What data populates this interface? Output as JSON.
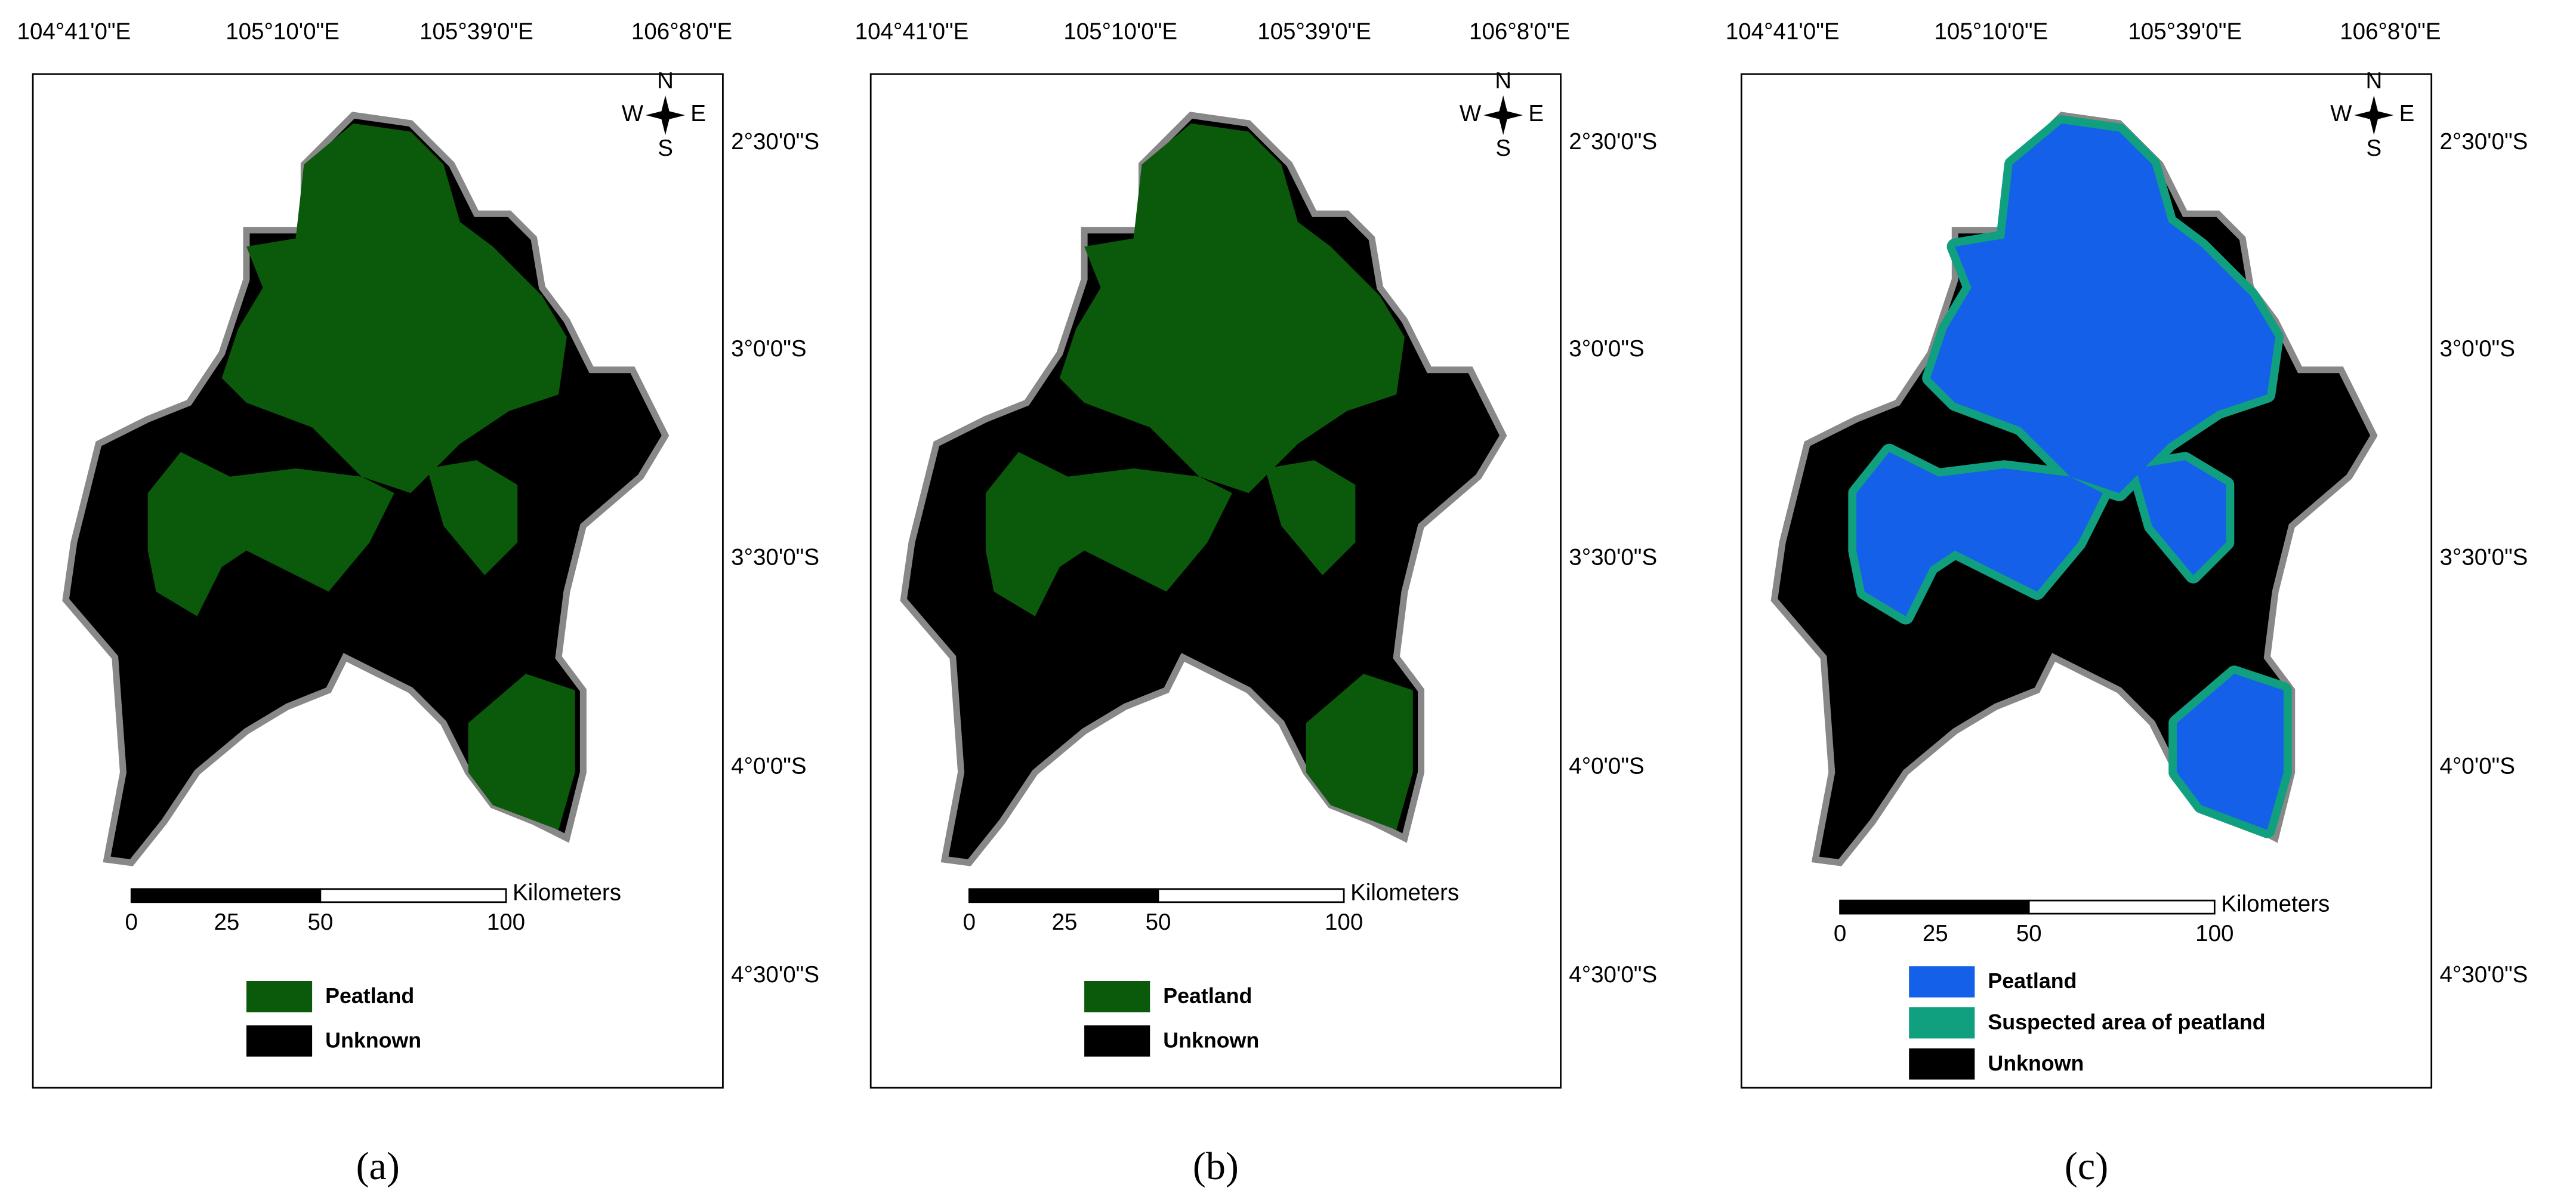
{
  "panels": [
    {
      "caption": "(a)",
      "top_labels": [
        "104°41'0\"E",
        "105°10'0\"E",
        "105°39'0\"E",
        "106°8'0\"E"
      ],
      "right_labels": [
        "2°30'0\"S",
        "3°0'0\"S",
        "3°30'0\"S",
        "4°0'0\"S",
        "4°30'0\"S"
      ],
      "compass": {
        "n": "N",
        "s": "S",
        "e": "E",
        "w": "W"
      },
      "scale": {
        "unit": "Kilometers",
        "labels": [
          "0",
          "25",
          "50",
          "100"
        ]
      },
      "legend": [
        {
          "label": "Peatland",
          "color": "#0b5a0b"
        },
        {
          "label": "Unknown",
          "color": "#000000"
        }
      ]
    },
    {
      "caption": "(b)",
      "top_labels": [
        "104°41'0\"E",
        "105°10'0\"E",
        "105°39'0\"E",
        "106°8'0\"E"
      ],
      "right_labels": [
        "2°30'0\"S",
        "3°0'0\"S",
        "3°30'0\"S",
        "4°0'0\"S",
        "4°30'0\"S"
      ],
      "compass": {
        "n": "N",
        "s": "S",
        "e": "E",
        "w": "W"
      },
      "scale": {
        "unit": "Kilometers",
        "labels": [
          "0",
          "25",
          "50",
          "100"
        ]
      },
      "legend": [
        {
          "label": "Peatland",
          "color": "#0b5a0b"
        },
        {
          "label": "Unknown",
          "color": "#000000"
        }
      ]
    },
    {
      "caption": "(c)",
      "top_labels": [
        "104°41'0\"E",
        "105°10'0\"E",
        "105°39'0\"E",
        "106°8'0\"E"
      ],
      "right_labels": [
        "2°30'0\"S",
        "3°0'0\"S",
        "3°30'0\"S",
        "4°0'0\"S",
        "4°30'0\"S"
      ],
      "compass": {
        "n": "N",
        "s": "S",
        "e": "E",
        "w": "W"
      },
      "scale": {
        "unit": "Kilometers",
        "labels": [
          "0",
          "25",
          "50",
          "100"
        ]
      },
      "legend": [
        {
          "label": "Peatland",
          "color": "#1560e8"
        },
        {
          "label": "Suspected area of peatland",
          "color": "#10a080"
        },
        {
          "label": "Unknown",
          "color": "#000000"
        }
      ]
    }
  ]
}
